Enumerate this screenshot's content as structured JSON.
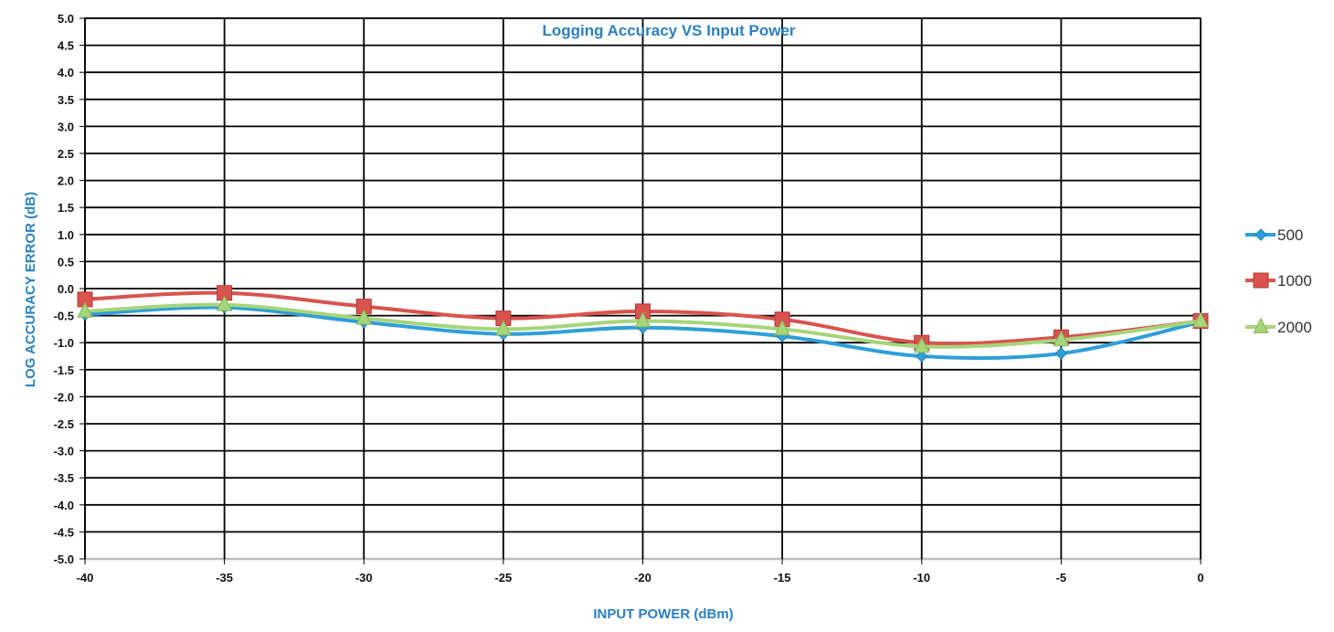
{
  "chart_data": {
    "type": "line",
    "title": "Logging Accuracy VS Input Power",
    "xlabel": "INPUT POWER (dBm)",
    "ylabel": "LOG ACCURACY ERROR (dB)",
    "xlim": [
      -40,
      0
    ],
    "ylim": [
      -5.0,
      5.0
    ],
    "x_ticks": [
      -40,
      -35,
      -30,
      -25,
      -20,
      -15,
      -10,
      -5,
      0
    ],
    "x_tick_labels": [
      "-40",
      "-35",
      "-30",
      "-25",
      "-20",
      "-15",
      "-10",
      "-5",
      "0"
    ],
    "y_ticks": [
      5.0,
      4.5,
      4.0,
      3.5,
      3.0,
      2.5,
      2.0,
      1.5,
      1.0,
      0.5,
      0.0,
      -0.5,
      -1.0,
      -1.5,
      -2.0,
      -2.5,
      -3.0,
      -3.5,
      -4.0,
      -4.5,
      -5.0
    ],
    "y_tick_labels": [
      "5.0",
      "4.5",
      "4.0",
      "3.5",
      "3.0",
      "2.5",
      "2.0",
      "1.5",
      "1.0",
      "0.5",
      "0.0",
      "-0.5",
      "-1.0",
      "-1.5",
      "-2.0",
      "-2.5",
      "-3.0",
      "-3.5",
      "-4.0",
      "-4.5",
      "-5.0"
    ],
    "x": [
      -40,
      -35,
      -30,
      -25,
      -20,
      -15,
      -10,
      -5,
      0
    ],
    "series": [
      {
        "name": "500",
        "values": [
          -0.48,
          -0.35,
          -0.62,
          -0.84,
          -0.72,
          -0.88,
          -1.25,
          -1.2,
          -0.62
        ],
        "color": "#2e9fd8",
        "marker": "diamond"
      },
      {
        "name": "1000",
        "values": [
          -0.2,
          -0.08,
          -0.33,
          -0.55,
          -0.42,
          -0.57,
          -1.0,
          -0.9,
          -0.6
        ],
        "color": "#d9534f",
        "marker": "square"
      },
      {
        "name": "2000",
        "values": [
          -0.42,
          -0.3,
          -0.55,
          -0.75,
          -0.6,
          -0.75,
          -1.07,
          -0.95,
          -0.6
        ],
        "color": "#a6d57a",
        "marker": "triangle"
      }
    ],
    "grid": true,
    "smooth": true,
    "legend_position": "right",
    "colors": {
      "title": "#2a7fc2",
      "axis_title": "#2a7fc2",
      "grid": "#000000"
    }
  }
}
